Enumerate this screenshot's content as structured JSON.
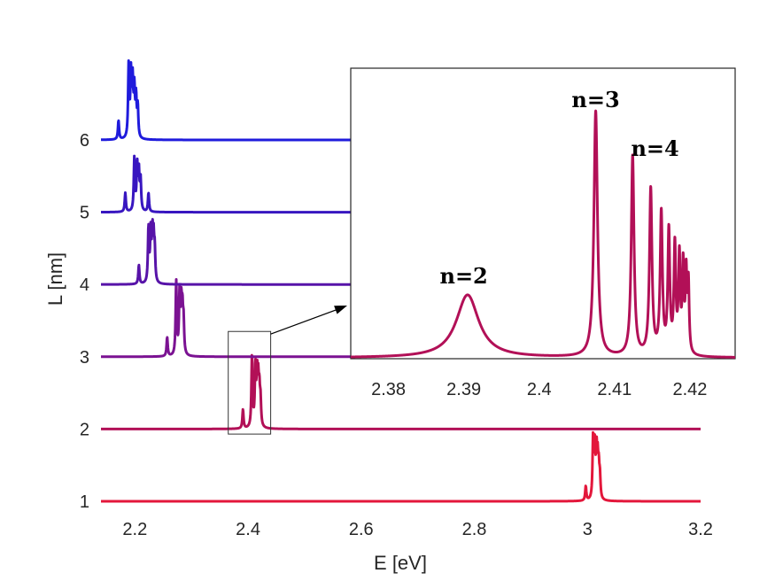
{
  "chart_data": {
    "type": "line",
    "xlabel": "E [eV]",
    "ylabel": "L [nm]",
    "xlim": [
      2.14,
      3.2
    ],
    "ylim": [
      1,
      6.6
    ],
    "xticks": [
      "2.2",
      "2.4",
      "2.6",
      "2.8",
      "3",
      "3.2"
    ],
    "yticks": [
      "1",
      "2",
      "3",
      "4",
      "5",
      "6"
    ],
    "grid": false,
    "series": [
      {
        "L": 1,
        "color": "#e3173b",
        "peaks": [
          [
            2.997,
            0.26
          ],
          [
            3.01,
            1.1
          ],
          [
            3.013,
            0.92
          ],
          [
            3.016,
            0.78
          ],
          [
            3.018,
            0.62
          ],
          [
            3.02,
            0.5
          ],
          [
            3.022,
            0.38
          ]
        ]
      },
      {
        "L": 2,
        "color": "#b21057",
        "peaks": [
          [
            2.391,
            0.34
          ],
          [
            2.407,
            1.3
          ],
          [
            2.413,
            1.05
          ],
          [
            2.416,
            0.82
          ],
          [
            2.418,
            0.7
          ],
          [
            2.42,
            0.58
          ],
          [
            2.422,
            0.45
          ]
        ]
      },
      {
        "L": 3,
        "color": "#7b1292",
        "peaks": [
          [
            2.257,
            0.34
          ],
          [
            2.273,
            1.32
          ],
          [
            2.279,
            1.08
          ],
          [
            2.282,
            0.85
          ],
          [
            2.284,
            0.7
          ],
          [
            2.286,
            0.56
          ]
        ]
      },
      {
        "L": 4,
        "color": "#5713a8",
        "peaks": [
          [
            2.207,
            0.34
          ],
          [
            2.224,
            0.98
          ],
          [
            2.228,
            0.92
          ],
          [
            2.231,
            0.8
          ],
          [
            2.233,
            0.68
          ],
          [
            2.235,
            0.55
          ]
        ]
      },
      {
        "L": 5,
        "color": "#3816c0",
        "peaks": [
          [
            2.183,
            0.34
          ],
          [
            2.199,
            0.95
          ],
          [
            2.204,
            0.8
          ],
          [
            2.207,
            0.67
          ],
          [
            2.21,
            0.55
          ],
          [
            2.224,
            0.34
          ]
        ]
      },
      {
        "L": 6,
        "color": "#1f1bdc",
        "peaks": [
          [
            2.171,
            0.34
          ],
          [
            2.189,
            1.3
          ],
          [
            2.193,
            1.1
          ],
          [
            2.196,
            0.96
          ],
          [
            2.199,
            0.82
          ],
          [
            2.202,
            0.68
          ],
          [
            2.205,
            0.55
          ]
        ]
      }
    ],
    "inset": {
      "series_of": 2,
      "xlim": [
        2.375,
        2.426
      ],
      "xticks": [
        "2.38",
        "2.39",
        "2.4",
        "2.41",
        "2.42"
      ],
      "annotations": [
        {
          "text": "n=2",
          "x": 2.39
        },
        {
          "text": "n=3",
          "x": 2.4075
        },
        {
          "text": "n=4",
          "x": 2.4135
        }
      ]
    },
    "zoom_box": {
      "xlim": [
        2.365,
        2.44
      ],
      "ylim": [
        1.93,
        3.35
      ]
    }
  }
}
